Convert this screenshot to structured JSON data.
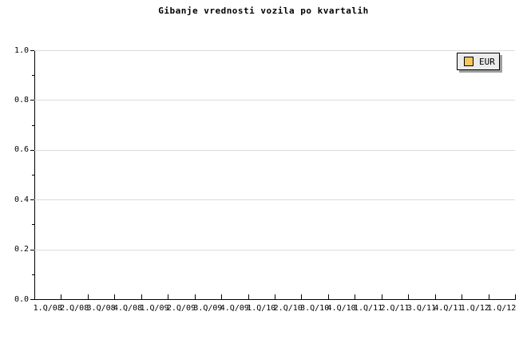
{
  "chart_data": {
    "type": "line",
    "title": "Gibanje vrednosti vozila po kvartalih",
    "categories": [
      "1.Q/08",
      "2.Q/08",
      "3.Q/08",
      "4.Q/08",
      "1.Q/09",
      "2.Q/09",
      "3.Q/09",
      "4.Q/09",
      "1.Q/10",
      "2.Q/10",
      "3.Q/10",
      "4.Q/10",
      "1.Q/11",
      "2.Q/11",
      "3.Q/11",
      "4.Q/11",
      "1.Q/12",
      "1.Q/12"
    ],
    "series": [
      {
        "name": "EUR",
        "color": "#FAC55F",
        "values": []
      }
    ],
    "xlabel": "",
    "ylabel": "",
    "ylim": [
      0.0,
      1.0
    ],
    "yticks": [
      0.0,
      0.2,
      0.4,
      0.6,
      0.8,
      1.0
    ],
    "ytick_labels": [
      "0.0",
      "0.2",
      "0.4",
      "0.6",
      "0.8",
      "1.0"
    ],
    "minor_ytick_step": 0.1,
    "grid": "horizontal-major",
    "legend_position": "top-right",
    "legend": {
      "entries": [
        {
          "label": "EUR",
          "swatch_color": "#FAC55F"
        }
      ]
    },
    "colors": {
      "background": "#ffffff",
      "axis": "#000000",
      "gridline": "#dcdcdc",
      "text": "#000000",
      "legend_bg": "#ececec",
      "legend_border": "#000000",
      "legend_shadow": "#9e9e9e"
    }
  }
}
